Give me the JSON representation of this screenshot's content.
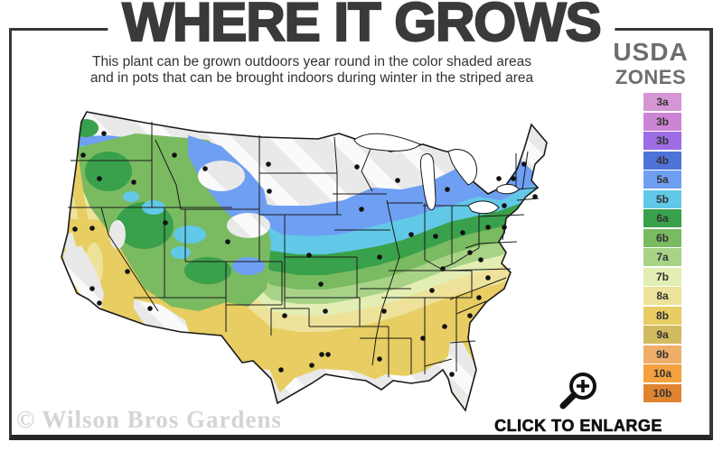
{
  "header": {
    "title": "WHERE IT GROWS",
    "subtitle_line1": "This plant can be grown outdoors year round in the color shaded areas",
    "subtitle_line2": "and in pots that can be brought indoors during winter in the striped area"
  },
  "legend": {
    "title_line1": "USDA",
    "title_line2": "ZONES",
    "items": [
      {
        "label": "3a",
        "color": "#d696d6"
      },
      {
        "label": "3b",
        "color": "#cc85d4"
      },
      {
        "label": "3b",
        "color": "#9e6ce4"
      },
      {
        "label": "4b",
        "color": "#4f74d8"
      },
      {
        "label": "5a",
        "color": "#6f9ff2"
      },
      {
        "label": "5b",
        "color": "#62c8e8"
      },
      {
        "label": "6a",
        "color": "#39a04b"
      },
      {
        "label": "6b",
        "color": "#7aba60"
      },
      {
        "label": "7a",
        "color": "#a8d387"
      },
      {
        "label": "7b",
        "color": "#e3eeb4"
      },
      {
        "label": "8a",
        "color": "#eee29a"
      },
      {
        "label": "8b",
        "color": "#e7cd62"
      },
      {
        "label": "9a",
        "color": "#d2ba60"
      },
      {
        "label": "9b",
        "color": "#f0ae6b"
      },
      {
        "label": "10a",
        "color": "#f2a13e"
      },
      {
        "label": "10b",
        "color": "#e08430"
      }
    ]
  },
  "map": {
    "name": "usda-hardiness-zone-map-lower-48",
    "striped_area_color": "#e9e9e9",
    "state_border_color": "#1a1a1a"
  },
  "footer": {
    "watermark": "© Wilson Bros Gardens",
    "enlarge_label": "CLICK TO ENLARGE",
    "enlarge_icon": "magnifier-plus-icon"
  },
  "colors": {
    "frame": "#383838",
    "title": "#3a3a3a",
    "legend_title": "#6e6e6e",
    "watermark": "#d4d4d4"
  }
}
